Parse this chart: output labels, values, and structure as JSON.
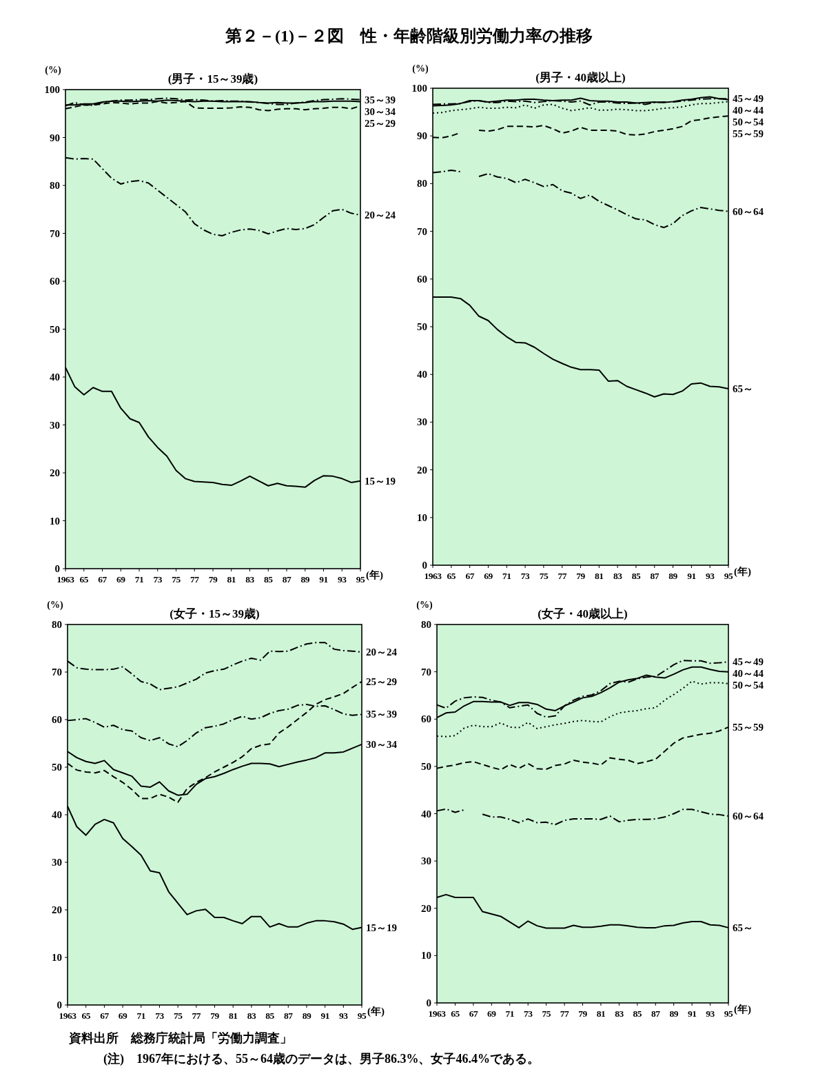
{
  "chart_data": [
    {
      "type": "line",
      "title": "第２－(1)－２図　性・年齢階級別労働力率の推移",
      "subtitle": "(男子・15～39歳)",
      "ylabel": "(%)",
      "xlabel": "(年)",
      "xlim": [
        1963,
        1995
      ],
      "ylim": [
        0,
        100
      ],
      "yticks": [
        0,
        10,
        20,
        30,
        40,
        50,
        60,
        70,
        80,
        90,
        100
      ],
      "xticks": [
        {
          "value": 1963,
          "label": "1963"
        },
        {
          "value": 1965,
          "label": "65"
        },
        {
          "value": 1967,
          "label": "67"
        },
        {
          "value": 1969,
          "label": "69"
        },
        {
          "value": 1971,
          "label": "71"
        },
        {
          "value": 1973,
          "label": "73"
        },
        {
          "value": 1975,
          "label": "75"
        },
        {
          "value": 1977,
          "label": "77"
        },
        {
          "value": 1979,
          "label": "79"
        },
        {
          "value": 1981,
          "label": "81"
        },
        {
          "value": 1983,
          "label": "83"
        },
        {
          "value": 1985,
          "label": "85"
        },
        {
          "value": 1987,
          "label": "87"
        },
        {
          "value": 1989,
          "label": "89"
        },
        {
          "value": 1991,
          "label": "91"
        },
        {
          "value": 1993,
          "label": "93"
        },
        {
          "value": 1995,
          "label": "95"
        }
      ],
      "x": [
        1963,
        1964,
        1965,
        1966,
        1967,
        1968,
        1969,
        1970,
        1971,
        1972,
        1973,
        1974,
        1975,
        1976,
        1977,
        1978,
        1979,
        1980,
        1981,
        1982,
        1983,
        1984,
        1985,
        1986,
        1987,
        1988,
        1989,
        1990,
        1991,
        1992,
        1993,
        1994,
        1995
      ],
      "series": [
        {
          "name": "35～39",
          "color": "#000000",
          "line_style": "dashdot",
          "values": [
            96.6,
            97.3,
            96.8,
            96.7,
            97.3,
            97.6,
            97.8,
            97.8,
            97.9,
            97.9,
            98.1,
            98.2,
            98.1,
            97.8,
            97.9,
            97.8,
            97.6,
            97.7,
            97.6,
            97.6,
            97.4,
            97.3,
            97.1,
            96.9,
            96.9,
            97.2,
            97.4,
            97.7,
            97.9,
            98.0,
            98.1,
            98.0,
            97.9
          ]
        },
        {
          "name": "30～34",
          "color": "#000000",
          "line_style": "solid",
          "values": [
            96.8,
            96.8,
            97.0,
            97.0,
            97.4,
            97.6,
            97.6,
            97.5,
            97.6,
            97.7,
            97.6,
            97.8,
            97.7,
            97.6,
            97.5,
            97.6,
            97.6,
            97.5,
            97.5,
            97.5,
            97.5,
            97.3,
            97.2,
            97.3,
            97.2,
            97.2,
            97.3,
            97.5,
            97.5,
            97.6,
            97.6,
            97.6,
            97.5
          ]
        },
        {
          "name": "25～29",
          "color": "#000000",
          "line_style": "dashed",
          "values": [
            96.0,
            96.4,
            96.8,
            96.8,
            97.0,
            97.3,
            97.2,
            97.0,
            97.2,
            97.2,
            97.5,
            97.2,
            97.3,
            97.5,
            96.2,
            96.1,
            96.1,
            96.1,
            96.2,
            96.4,
            96.3,
            95.8,
            95.6,
            95.9,
            96.0,
            96.0,
            95.8,
            96.0,
            96.1,
            96.3,
            96.3,
            96.0,
            96.6
          ]
        },
        {
          "name": "20～24",
          "color": "#000000",
          "line_style": "dashdot",
          "values": [
            85.8,
            85.5,
            85.6,
            85.5,
            83.5,
            81.5,
            80.3,
            80.8,
            81.0,
            80.5,
            79.0,
            77.5,
            76.0,
            74.5,
            72.0,
            70.7,
            69.8,
            69.5,
            70.2,
            70.7,
            70.9,
            70.6,
            69.9,
            70.5,
            71.0,
            70.8,
            71.0,
            71.8,
            73.3,
            74.7,
            75.0,
            74.2,
            73.8
          ]
        },
        {
          "name": "15～19",
          "color": "#000000",
          "line_style": "solid",
          "values": [
            42.0,
            38.0,
            36.3,
            37.8,
            37.0,
            37.0,
            33.5,
            31.3,
            30.5,
            27.5,
            25.3,
            23.5,
            20.5,
            18.8,
            18.2,
            18.1,
            18.0,
            17.6,
            17.4,
            18.3,
            19.3,
            18.3,
            17.3,
            17.8,
            17.3,
            17.2,
            17.0,
            18.4,
            19.4,
            19.3,
            18.8,
            18.0,
            18.3
          ]
        }
      ]
    },
    {
      "type": "line",
      "subtitle": "(男子・40歳以上)",
      "ylabel": "(%)",
      "xlabel": "(年)",
      "xlim": [
        1963,
        1995
      ],
      "ylim": [
        0,
        100
      ],
      "yticks": [
        0,
        10,
        20,
        30,
        40,
        50,
        60,
        70,
        80,
        90,
        100
      ],
      "xticks": [
        {
          "value": 1963,
          "label": "1963"
        },
        {
          "value": 1965,
          "label": "65"
        },
        {
          "value": 1967,
          "label": "67"
        },
        {
          "value": 1969,
          "label": "69"
        },
        {
          "value": 1971,
          "label": "71"
        },
        {
          "value": 1973,
          "label": "73"
        },
        {
          "value": 1975,
          "label": "75"
        },
        {
          "value": 1977,
          "label": "77"
        },
        {
          "value": 1979,
          "label": "79"
        },
        {
          "value": 1981,
          "label": "81"
        },
        {
          "value": 1983,
          "label": "83"
        },
        {
          "value": 1985,
          "label": "85"
        },
        {
          "value": 1987,
          "label": "87"
        },
        {
          "value": 1989,
          "label": "89"
        },
        {
          "value": 1991,
          "label": "91"
        },
        {
          "value": 1993,
          "label": "93"
        },
        {
          "value": 1995,
          "label": "95"
        }
      ],
      "x": [
        1963,
        1964,
        1965,
        1966,
        1967,
        1968,
        1969,
        1970,
        1971,
        1972,
        1973,
        1974,
        1975,
        1976,
        1977,
        1978,
        1979,
        1980,
        1981,
        1982,
        1983,
        1984,
        1985,
        1986,
        1987,
        1988,
        1989,
        1990,
        1991,
        1992,
        1993,
        1994,
        1995
      ],
      "series": [
        {
          "name": "40～44",
          "color": "#000000",
          "line_style": "solid",
          "values": [
            96.3,
            96.4,
            96.5,
            96.8,
            97.4,
            97.4,
            97.1,
            97.3,
            97.5,
            97.5,
            97.7,
            97.7,
            97.5,
            97.4,
            97.5,
            97.5,
            97.9,
            97.4,
            97.3,
            97.3,
            97.1,
            97.1,
            96.9,
            97.0,
            97.1,
            97.0,
            97.2,
            97.5,
            97.7,
            98.0,
            98.2,
            97.8,
            97.6
          ]
        },
        {
          "name": "45～49",
          "color": "#000000",
          "line_style": "dashdot",
          "values": [
            96.6,
            96.7,
            96.7,
            96.8,
            97.2,
            97.4,
            97.0,
            97.0,
            97.3,
            97.2,
            97.3,
            97.0,
            97.2,
            97.4,
            97.3,
            97.1,
            97.3,
            96.5,
            97.1,
            97.1,
            96.9,
            96.8,
            96.9,
            96.6,
            97.0,
            97.1,
            97.1,
            97.3,
            97.5,
            97.7,
            97.8,
            97.8,
            97.8
          ]
        },
        {
          "name": "50～54",
          "color": "#000000",
          "line_style": "dotted",
          "values": [
            94.8,
            94.9,
            95.3,
            95.5,
            95.7,
            96.0,
            95.8,
            95.8,
            96.0,
            95.9,
            96.5,
            95.8,
            96.5,
            96.6,
            95.8,
            95.3,
            95.6,
            95.9,
            95.4,
            95.4,
            95.6,
            95.5,
            95.3,
            95.3,
            95.5,
            95.8,
            95.9,
            96.1,
            96.5,
            96.8,
            96.8,
            97.0,
            97.2
          ]
        },
        {
          "name": "55～59",
          "color": "#000000",
          "line_style": "dashed",
          "values": [
            89.7,
            89.6,
            90.0,
            90.7,
            null,
            91.2,
            91.0,
            91.3,
            92.0,
            92.0,
            92.0,
            91.9,
            92.2,
            91.5,
            90.6,
            91.0,
            91.8,
            91.2,
            91.2,
            91.2,
            91.0,
            90.3,
            90.2,
            90.4,
            90.9,
            91.2,
            91.5,
            92.0,
            93.2,
            93.4,
            93.8,
            94.0,
            94.2
          ]
        },
        {
          "name": "60～64",
          "color": "#000000",
          "line_style": "dashdot",
          "values": [
            82.3,
            82.5,
            82.8,
            82.5,
            null,
            81.5,
            82.1,
            81.4,
            81.1,
            80.2,
            80.9,
            80.2,
            79.4,
            79.8,
            78.5,
            78.0,
            76.9,
            77.6,
            76.3,
            75.4,
            74.5,
            73.5,
            72.6,
            72.4,
            71.4,
            70.8,
            71.6,
            73.3,
            74.3,
            75.0,
            74.7,
            74.4,
            74.2
          ]
        },
        {
          "name": "65～",
          "color": "#000000",
          "line_style": "solid",
          "values": [
            56.2,
            56.2,
            56.2,
            55.9,
            54.5,
            52.2,
            51.3,
            49.4,
            47.9,
            46.7,
            46.6,
            45.7,
            44.4,
            43.2,
            42.3,
            41.5,
            41.0,
            41.0,
            40.9,
            38.6,
            38.7,
            37.5,
            36.8,
            36.1,
            35.3,
            35.9,
            35.8,
            36.5,
            38.0,
            38.2,
            37.5,
            37.4,
            37.0
          ]
        }
      ]
    },
    {
      "type": "line",
      "subtitle": "(女子・15～39歳)",
      "ylabel": "(%)",
      "xlabel": "(年)",
      "xlim": [
        1963,
        1995
      ],
      "ylim": [
        0,
        80
      ],
      "yticks": [
        0,
        10,
        20,
        30,
        40,
        50,
        60,
        70,
        80
      ],
      "xticks": [
        {
          "value": 1963,
          "label": "1963"
        },
        {
          "value": 1965,
          "label": "65"
        },
        {
          "value": 1967,
          "label": "67"
        },
        {
          "value": 1969,
          "label": "69"
        },
        {
          "value": 1971,
          "label": "71"
        },
        {
          "value": 1973,
          "label": "73"
        },
        {
          "value": 1975,
          "label": "75"
        },
        {
          "value": 1977,
          "label": "77"
        },
        {
          "value": 1979,
          "label": "79"
        },
        {
          "value": 1981,
          "label": "81"
        },
        {
          "value": 1983,
          "label": "83"
        },
        {
          "value": 1985,
          "label": "85"
        },
        {
          "value": 1987,
          "label": "87"
        },
        {
          "value": 1989,
          "label": "89"
        },
        {
          "value": 1991,
          "label": "91"
        },
        {
          "value": 1993,
          "label": "93"
        },
        {
          "value": 1995,
          "label": "95"
        }
      ],
      "x": [
        1963,
        1964,
        1965,
        1966,
        1967,
        1968,
        1969,
        1970,
        1971,
        1972,
        1973,
        1974,
        1975,
        1976,
        1977,
        1978,
        1979,
        1980,
        1981,
        1982,
        1983,
        1984,
        1985,
        1986,
        1987,
        1988,
        1989,
        1990,
        1991,
        1992,
        1993,
        1994,
        1995
      ],
      "series": [
        {
          "name": "20～24",
          "color": "#000000",
          "line_style": "dashdot",
          "values": [
            72.3,
            70.9,
            70.6,
            70.5,
            70.5,
            70.6,
            71.1,
            69.6,
            68.0,
            67.5,
            66.3,
            66.6,
            66.9,
            67.7,
            68.5,
            69.8,
            70.3,
            70.6,
            71.5,
            72.3,
            72.9,
            72.5,
            74.4,
            74.3,
            74.4,
            75.2,
            75.9,
            76.2,
            76.2,
            74.8,
            74.5,
            74.4,
            74.2
          ]
        },
        {
          "name": "25～29",
          "color": "#000000",
          "line_style": "dashed",
          "values": [
            50.8,
            49.4,
            49.0,
            48.8,
            49.3,
            48.0,
            46.8,
            45.3,
            43.4,
            43.4,
            44.3,
            43.7,
            42.6,
            45.5,
            46.8,
            47.8,
            49.0,
            50.0,
            51.0,
            52.2,
            53.9,
            54.6,
            54.9,
            57.2,
            58.5,
            60.0,
            61.5,
            63.2,
            64.2,
            64.8,
            65.5,
            66.8,
            68.0
          ]
        },
        {
          "name": "35～39",
          "color": "#000000",
          "line_style": "dashdot",
          "values": [
            59.8,
            60.0,
            60.2,
            59.4,
            58.4,
            58.8,
            57.9,
            57.6,
            56.2,
            55.6,
            56.2,
            54.9,
            54.3,
            55.6,
            57.2,
            58.3,
            58.6,
            59.1,
            60.0,
            60.7,
            60.1,
            60.4,
            61.3,
            61.9,
            62.2,
            63.0,
            63.2,
            62.8,
            62.9,
            62.1,
            61.2,
            60.9,
            61.1
          ]
        },
        {
          "name": "30～34",
          "color": "#000000",
          "line_style": "solid",
          "values": [
            53.3,
            52.0,
            51.2,
            50.8,
            51.4,
            49.5,
            48.8,
            48.1,
            46.0,
            45.8,
            46.9,
            45.0,
            44.1,
            44.3,
            46.4,
            47.6,
            48.0,
            48.7,
            49.5,
            50.2,
            50.8,
            50.8,
            50.7,
            50.1,
            50.6,
            51.1,
            51.5,
            52.0,
            53.0,
            53.0,
            53.2,
            54.0,
            54.8
          ]
        },
        {
          "name": "15～19",
          "color": "#000000",
          "line_style": "solid",
          "values": [
            41.8,
            37.5,
            35.7,
            38.0,
            39.0,
            38.3,
            35.0,
            33.3,
            31.5,
            28.2,
            27.8,
            23.8,
            21.4,
            19.0,
            19.8,
            20.1,
            18.4,
            18.4,
            17.7,
            17.1,
            18.6,
            18.6,
            16.4,
            17.1,
            16.4,
            16.4,
            17.2,
            17.7,
            17.7,
            17.5,
            17.0,
            15.9,
            16.3
          ]
        }
      ]
    },
    {
      "type": "line",
      "subtitle": "(女子・40歳以上)",
      "ylabel": "(%)",
      "xlabel": "(年)",
      "xlim": [
        1963,
        1995
      ],
      "ylim": [
        0,
        80
      ],
      "yticks": [
        0,
        10,
        20,
        30,
        40,
        50,
        60,
        70,
        80
      ],
      "xticks": [
        {
          "value": 1963,
          "label": "1963"
        },
        {
          "value": 1965,
          "label": "65"
        },
        {
          "value": 1967,
          "label": "67"
        },
        {
          "value": 1969,
          "label": "69"
        },
        {
          "value": 1971,
          "label": "71"
        },
        {
          "value": 1973,
          "label": "73"
        },
        {
          "value": 1975,
          "label": "75"
        },
        {
          "value": 1977,
          "label": "77"
        },
        {
          "value": 1979,
          "label": "79"
        },
        {
          "value": 1981,
          "label": "81"
        },
        {
          "value": 1983,
          "label": "83"
        },
        {
          "value": 1985,
          "label": "85"
        },
        {
          "value": 1987,
          "label": "87"
        },
        {
          "value": 1989,
          "label": "89"
        },
        {
          "value": 1991,
          "label": "91"
        },
        {
          "value": 1993,
          "label": "93"
        },
        {
          "value": 1995,
          "label": "95"
        }
      ],
      "x": [
        1963,
        1964,
        1965,
        1966,
        1967,
        1968,
        1969,
        1970,
        1971,
        1972,
        1973,
        1974,
        1975,
        1976,
        1977,
        1978,
        1979,
        1980,
        1981,
        1982,
        1983,
        1984,
        1985,
        1986,
        1987,
        1988,
        1989,
        1990,
        1991,
        1992,
        1993,
        1994,
        1995
      ],
      "series": [
        {
          "name": "45～49",
          "color": "#000000",
          "line_style": "dashdot",
          "values": [
            63.0,
            62.3,
            63.8,
            64.5,
            64.7,
            64.6,
            64.0,
            63.6,
            62.4,
            62.7,
            63.0,
            61.2,
            60.4,
            60.7,
            62.8,
            64.0,
            64.8,
            65.1,
            66.0,
            67.5,
            68.0,
            67.8,
            68.5,
            68.9,
            69.0,
            70.2,
            71.5,
            72.4,
            72.3,
            72.3,
            71.8,
            71.9,
            72.1
          ]
        },
        {
          "name": "40～44",
          "color": "#000000",
          "line_style": "solid",
          "values": [
            60.3,
            61.3,
            61.5,
            62.8,
            63.7,
            63.7,
            63.6,
            63.6,
            62.9,
            63.5,
            63.5,
            63.1,
            62.1,
            61.8,
            62.8,
            63.6,
            64.5,
            64.8,
            65.6,
            66.6,
            67.8,
            68.3,
            68.6,
            69.3,
            68.9,
            68.7,
            69.5,
            70.4,
            71.0,
            71.0,
            70.5,
            70.1,
            70.0
          ]
        },
        {
          "name": "50～54",
          "color": "#000000",
          "line_style": "dotted",
          "values": [
            56.4,
            56.3,
            56.5,
            58.1,
            58.7,
            58.4,
            58.4,
            59.2,
            58.3,
            58.2,
            59.3,
            58.0,
            58.4,
            58.8,
            59.1,
            59.5,
            59.7,
            59.5,
            59.4,
            60.5,
            61.3,
            61.6,
            61.8,
            62.2,
            62.4,
            64.0,
            65.2,
            66.5,
            68.0,
            67.4,
            67.7,
            67.7,
            67.5
          ]
        },
        {
          "name": "55～59",
          "color": "#000000",
          "line_style": "dashed",
          "values": [
            49.6,
            50.0,
            50.3,
            50.8,
            51.0,
            50.4,
            49.8,
            49.3,
            50.4,
            49.6,
            50.6,
            49.5,
            49.4,
            50.2,
            50.5,
            51.3,
            50.9,
            50.7,
            50.3,
            51.8,
            51.5,
            51.3,
            50.6,
            51.0,
            51.5,
            53.2,
            54.9,
            56.0,
            56.4,
            56.8,
            57.0,
            57.5,
            58.3
          ]
        },
        {
          "name": "60～64",
          "color": "#000000",
          "line_style": "dashdot",
          "values": [
            40.6,
            41.0,
            40.3,
            40.8,
            null,
            39.9,
            39.3,
            39.3,
            38.8,
            38.1,
            38.9,
            38.1,
            38.2,
            37.7,
            38.6,
            38.9,
            38.9,
            38.9,
            38.8,
            39.5,
            38.3,
            38.6,
            38.8,
            38.8,
            38.9,
            39.3,
            40.0,
            40.9,
            40.9,
            40.4,
            39.9,
            39.8,
            39.5
          ]
        },
        {
          "name": "65～",
          "color": "#000000",
          "line_style": "solid",
          "values": [
            22.3,
            22.9,
            22.3,
            22.3,
            22.3,
            19.3,
            18.8,
            18.3,
            17.1,
            15.9,
            17.3,
            16.3,
            15.8,
            15.8,
            15.8,
            16.4,
            16.0,
            16.0,
            16.2,
            16.5,
            16.5,
            16.3,
            16.0,
            15.9,
            15.9,
            16.3,
            16.4,
            16.9,
            17.2,
            17.2,
            16.5,
            16.4,
            15.9
          ]
        }
      ],
      "annotations": [
        "資料出所　総務庁統計局「労働力調査」",
        "(注)　1967年における、55～64歳のデータは、男子86.3%、女子46.4%である。"
      ]
    }
  ]
}
